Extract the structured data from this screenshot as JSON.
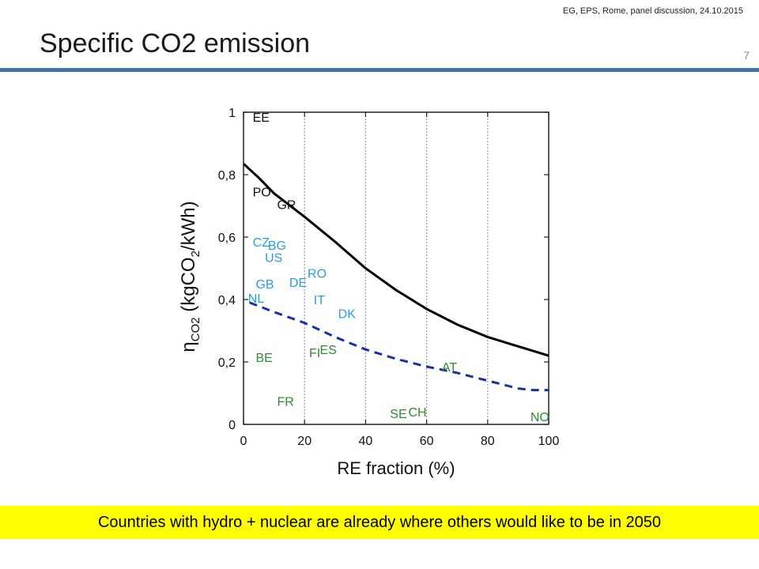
{
  "header": {
    "note": "EG, EPS, Rome, panel discussion, 24.10.2015",
    "title": "Specific CO2 emission",
    "page_number": "7"
  },
  "caption": "Countries with hydro + nuclear are already where others would like to be in 2050",
  "colors": {
    "accent_rule": "#4472a8",
    "caption_bg": "#ffff00",
    "blue_labels": "#2a9fd6",
    "green_labels": "#2e8b2e",
    "solid_curve": "#000000",
    "dashed_curve": "#1a2fa8"
  },
  "chart_data": {
    "type": "line",
    "xlabel": "RE fraction (%)",
    "ylabel": {
      "prefix": "η",
      "sub1": "CO2",
      "mid": " (kgCO",
      "sub2": "2",
      "suffix": "/kWh)"
    },
    "xlim": [
      0,
      100
    ],
    "ylim": [
      0,
      1
    ],
    "x_ticks": [
      "0",
      "20",
      "40",
      "60",
      "80",
      "100"
    ],
    "y_ticks": [
      "0",
      "0,2",
      "0,4",
      "0,6",
      "0,8",
      "1"
    ],
    "x_tick_values": [
      0,
      20,
      40,
      60,
      80,
      100
    ],
    "y_tick_values": [
      0,
      0.2,
      0.4,
      0.6,
      0.8,
      1.0
    ],
    "gridlines_x": [
      20,
      40,
      60,
      80
    ],
    "series": [
      {
        "style": "solid",
        "x": [
          0,
          5,
          10,
          20,
          30,
          40,
          50,
          60,
          70,
          80,
          90,
          100
        ],
        "y": [
          0.835,
          0.79,
          0.74,
          0.665,
          0.585,
          0.5,
          0.43,
          0.37,
          0.32,
          0.28,
          0.25,
          0.22
        ]
      },
      {
        "style": "dashed",
        "x": [
          2,
          10,
          20,
          30,
          40,
          50,
          60,
          70,
          80,
          90,
          95,
          100
        ],
        "y": [
          0.39,
          0.36,
          0.325,
          0.28,
          0.24,
          0.21,
          0.185,
          0.165,
          0.14,
          0.115,
          0.11,
          0.11
        ]
      }
    ],
    "annotations": [
      {
        "text": "EE",
        "x": 3,
        "y": 0.97,
        "group": "black"
      },
      {
        "text": "PO",
        "x": 3,
        "y": 0.73,
        "group": "black"
      },
      {
        "text": "GR",
        "x": 11,
        "y": 0.69,
        "group": "black"
      },
      {
        "text": "CZ",
        "x": 3,
        "y": 0.57,
        "group": "blue"
      },
      {
        "text": "BG",
        "x": 8,
        "y": 0.56,
        "group": "blue"
      },
      {
        "text": "US",
        "x": 7,
        "y": 0.52,
        "group": "blue"
      },
      {
        "text": "RO",
        "x": 21,
        "y": 0.47,
        "group": "blue"
      },
      {
        "text": "DE",
        "x": 15,
        "y": 0.44,
        "group": "blue"
      },
      {
        "text": "GB",
        "x": 4,
        "y": 0.435,
        "group": "blue"
      },
      {
        "text": "NL",
        "x": 1.5,
        "y": 0.39,
        "group": "blue"
      },
      {
        "text": "IT",
        "x": 23,
        "y": 0.385,
        "group": "blue"
      },
      {
        "text": "DK",
        "x": 31,
        "y": 0.34,
        "group": "blue"
      },
      {
        "text": "BE",
        "x": 4,
        "y": 0.2,
        "group": "green"
      },
      {
        "text": "FI",
        "x": 21.5,
        "y": 0.215,
        "group": "green"
      },
      {
        "text": "ES",
        "x": 25,
        "y": 0.225,
        "group": "green"
      },
      {
        "text": "AT",
        "x": 65,
        "y": 0.17,
        "group": "green"
      },
      {
        "text": "FR",
        "x": 11,
        "y": 0.06,
        "group": "green"
      },
      {
        "text": "SE",
        "x": 48,
        "y": 0.02,
        "group": "green"
      },
      {
        "text": "CH",
        "x": 54,
        "y": 0.025,
        "group": "green"
      },
      {
        "text": "NO",
        "x": 94,
        "y": 0.01,
        "group": "green"
      }
    ]
  }
}
